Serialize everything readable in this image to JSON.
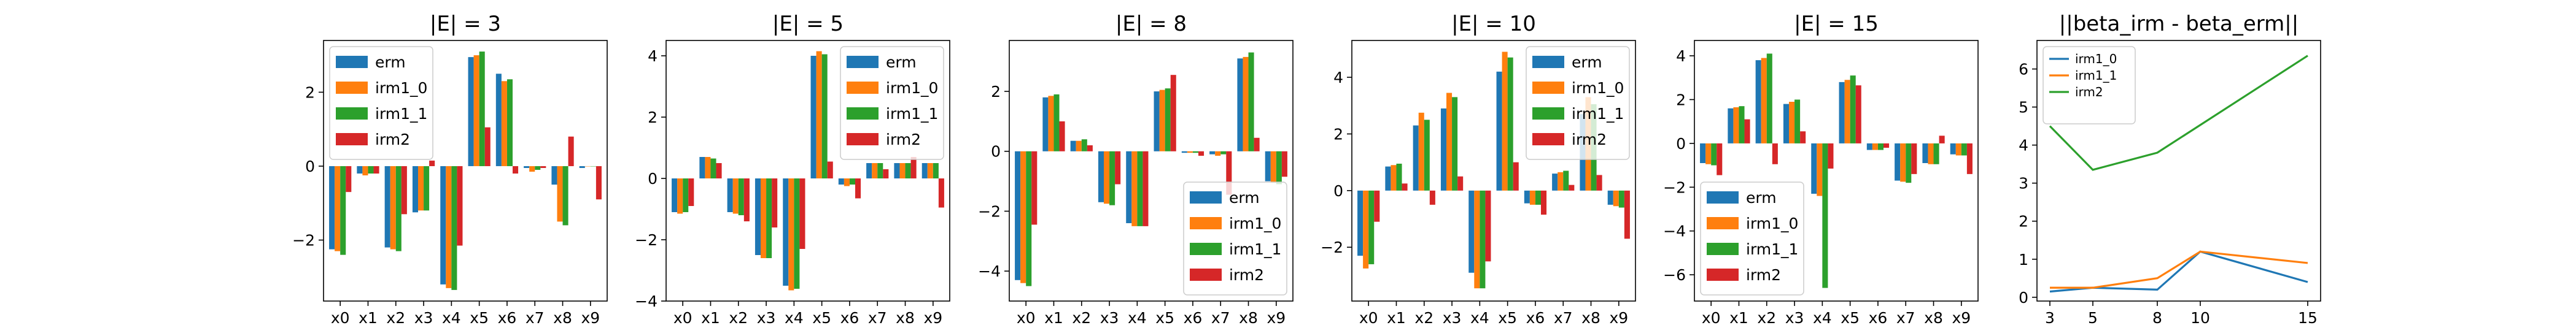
{
  "colors": {
    "erm": "#1f77b4",
    "irm1_0": "#ff7f0e",
    "irm1_1": "#2ca02c",
    "irm2": "#d62728",
    "axis": "#000000",
    "background": "#ffffff"
  },
  "chart_data": [
    {
      "type": "bar",
      "title": "|E| = 3",
      "categories": [
        "x0",
        "x1",
        "x2",
        "x3",
        "x4",
        "x5",
        "x6",
        "x7",
        "x8",
        "x9"
      ],
      "ylim": [
        -3.65,
        3.4
      ],
      "yticks": [
        -2,
        0,
        2
      ],
      "legend": "upper-left",
      "series": [
        {
          "name": "erm",
          "values": [
            -2.25,
            -0.2,
            -2.2,
            -1.25,
            -3.2,
            2.95,
            2.5,
            -0.05,
            -0.5,
            -0.05
          ]
        },
        {
          "name": "irm1_0",
          "values": [
            -2.3,
            -0.25,
            -2.25,
            -1.2,
            -3.3,
            3.0,
            2.3,
            -0.15,
            -1.5,
            0.0
          ]
        },
        {
          "name": "irm1_1",
          "values": [
            -2.4,
            -0.2,
            -2.3,
            -1.2,
            -3.35,
            3.1,
            2.35,
            -0.1,
            -1.6,
            0.0
          ]
        },
        {
          "name": "irm2",
          "values": [
            -0.7,
            -0.2,
            -1.3,
            0.15,
            -2.15,
            1.05,
            -0.2,
            -0.05,
            0.8,
            -0.9
          ]
        }
      ]
    },
    {
      "type": "bar",
      "title": "|E| = 5",
      "categories": [
        "x0",
        "x1",
        "x2",
        "x3",
        "x4",
        "x5",
        "x6",
        "x7",
        "x8",
        "x9"
      ],
      "ylim": [
        -4.0,
        4.5
      ],
      "yticks": [
        -4,
        -2,
        0,
        2,
        4
      ],
      "legend": "upper-right",
      "series": [
        {
          "name": "erm",
          "values": [
            -1.1,
            0.7,
            -1.1,
            -2.5,
            -3.5,
            4.0,
            -0.2,
            0.5,
            0.5,
            0.5
          ]
        },
        {
          "name": "irm1_0",
          "values": [
            -1.15,
            0.7,
            -1.15,
            -2.6,
            -3.65,
            4.15,
            -0.25,
            0.5,
            0.5,
            0.5
          ]
        },
        {
          "name": "irm1_1",
          "values": [
            -1.1,
            0.65,
            -1.2,
            -2.6,
            -3.6,
            4.05,
            -0.2,
            0.5,
            0.5,
            0.5
          ]
        },
        {
          "name": "irm2",
          "values": [
            -0.9,
            0.5,
            -1.4,
            -1.6,
            -2.3,
            0.55,
            -0.65,
            0.3,
            0.7,
            -0.95
          ]
        }
      ]
    },
    {
      "type": "bar",
      "title": "|E| = 8",
      "categories": [
        "x0",
        "x1",
        "x2",
        "x3",
        "x4",
        "x5",
        "x6",
        "x7",
        "x8",
        "x9"
      ],
      "ylim": [
        -5.0,
        3.7
      ],
      "yticks": [
        -4,
        -2,
        0,
        2
      ],
      "legend": "lower-right",
      "series": [
        {
          "name": "erm",
          "values": [
            -4.3,
            1.8,
            0.35,
            -1.7,
            -2.4,
            2.0,
            -0.05,
            -0.1,
            3.1,
            -1.0
          ]
        },
        {
          "name": "irm1_0",
          "values": [
            -4.4,
            1.85,
            0.35,
            -1.75,
            -2.5,
            2.05,
            -0.05,
            -0.15,
            3.15,
            -1.05
          ]
        },
        {
          "name": "irm1_1",
          "values": [
            -4.5,
            1.9,
            0.4,
            -1.8,
            -2.5,
            2.1,
            -0.05,
            -0.1,
            3.3,
            -1.1
          ]
        },
        {
          "name": "irm2",
          "values": [
            -2.45,
            1.0,
            0.2,
            -1.1,
            -2.5,
            2.55,
            -0.15,
            -1.45,
            0.45,
            -0.85
          ]
        }
      ]
    },
    {
      "type": "bar",
      "title": "|E| = 10",
      "categories": [
        "x0",
        "x1",
        "x2",
        "x3",
        "x4",
        "x5",
        "x6",
        "x7",
        "x8",
        "x9"
      ],
      "ylim": [
        -3.9,
        5.3
      ],
      "yticks": [
        -2,
        0,
        2,
        4
      ],
      "legend": "upper-right",
      "series": [
        {
          "name": "erm",
          "values": [
            -2.3,
            0.85,
            2.3,
            2.9,
            -2.9,
            4.2,
            -0.45,
            0.6,
            2.7,
            -0.5
          ]
        },
        {
          "name": "irm1_0",
          "values": [
            -2.75,
            0.9,
            2.75,
            3.45,
            -3.45,
            4.9,
            -0.5,
            0.65,
            3.3,
            -0.55
          ]
        },
        {
          "name": "irm1_1",
          "values": [
            -2.6,
            0.95,
            2.5,
            3.3,
            -3.45,
            4.7,
            -0.5,
            0.7,
            3.05,
            -0.6
          ]
        },
        {
          "name": "irm2",
          "values": [
            -1.1,
            0.25,
            -0.5,
            0.5,
            -2.5,
            1.0,
            -0.85,
            0.2,
            0.55,
            -1.7
          ]
        }
      ]
    },
    {
      "type": "bar",
      "title": "|E| = 15",
      "categories": [
        "x0",
        "x1",
        "x2",
        "x3",
        "x4",
        "x5",
        "x6",
        "x7",
        "x8",
        "x9"
      ],
      "ylim": [
        -7.2,
        4.7
      ],
      "yticks": [
        -6,
        -4,
        -2,
        0,
        2,
        4
      ],
      "legend": "lower-left",
      "series": [
        {
          "name": "erm",
          "values": [
            -0.9,
            1.6,
            3.8,
            1.8,
            -2.3,
            2.8,
            -0.3,
            -1.7,
            -0.9,
            -0.5
          ]
        },
        {
          "name": "irm1_0",
          "values": [
            -0.95,
            1.65,
            3.9,
            1.9,
            -2.4,
            2.9,
            -0.3,
            -1.75,
            -0.95,
            -0.55
          ]
        },
        {
          "name": "irm1_1",
          "values": [
            -1.0,
            1.7,
            4.1,
            2.0,
            -6.6,
            3.1,
            -0.3,
            -1.8,
            -0.95,
            -0.55
          ]
        },
        {
          "name": "irm2",
          "values": [
            -1.45,
            1.1,
            -0.95,
            0.55,
            -1.15,
            2.65,
            -0.2,
            -1.4,
            0.35,
            -1.4
          ]
        }
      ]
    },
    {
      "type": "line",
      "title": "||beta_irm - beta_erm||",
      "x": [
        3,
        5,
        8,
        10,
        15
      ],
      "xticks": [
        3,
        5,
        8,
        10,
        15
      ],
      "xlim": [
        2.4,
        15.6
      ],
      "ylim": [
        -0.1,
        6.75
      ],
      "yticks": [
        0,
        1,
        2,
        3,
        4,
        5,
        6
      ],
      "legend": "upper-left",
      "series": [
        {
          "name": "irm1_0",
          "color": "#1f77b4",
          "values": [
            0.15,
            0.25,
            0.2,
            1.2,
            0.4
          ]
        },
        {
          "name": "irm1_1",
          "color": "#ff7f0e",
          "values": [
            0.25,
            0.25,
            0.5,
            1.2,
            0.9
          ]
        },
        {
          "name": "irm2",
          "color": "#2ca02c",
          "values": [
            4.5,
            3.35,
            3.8,
            null,
            6.35
          ]
        }
      ]
    }
  ]
}
